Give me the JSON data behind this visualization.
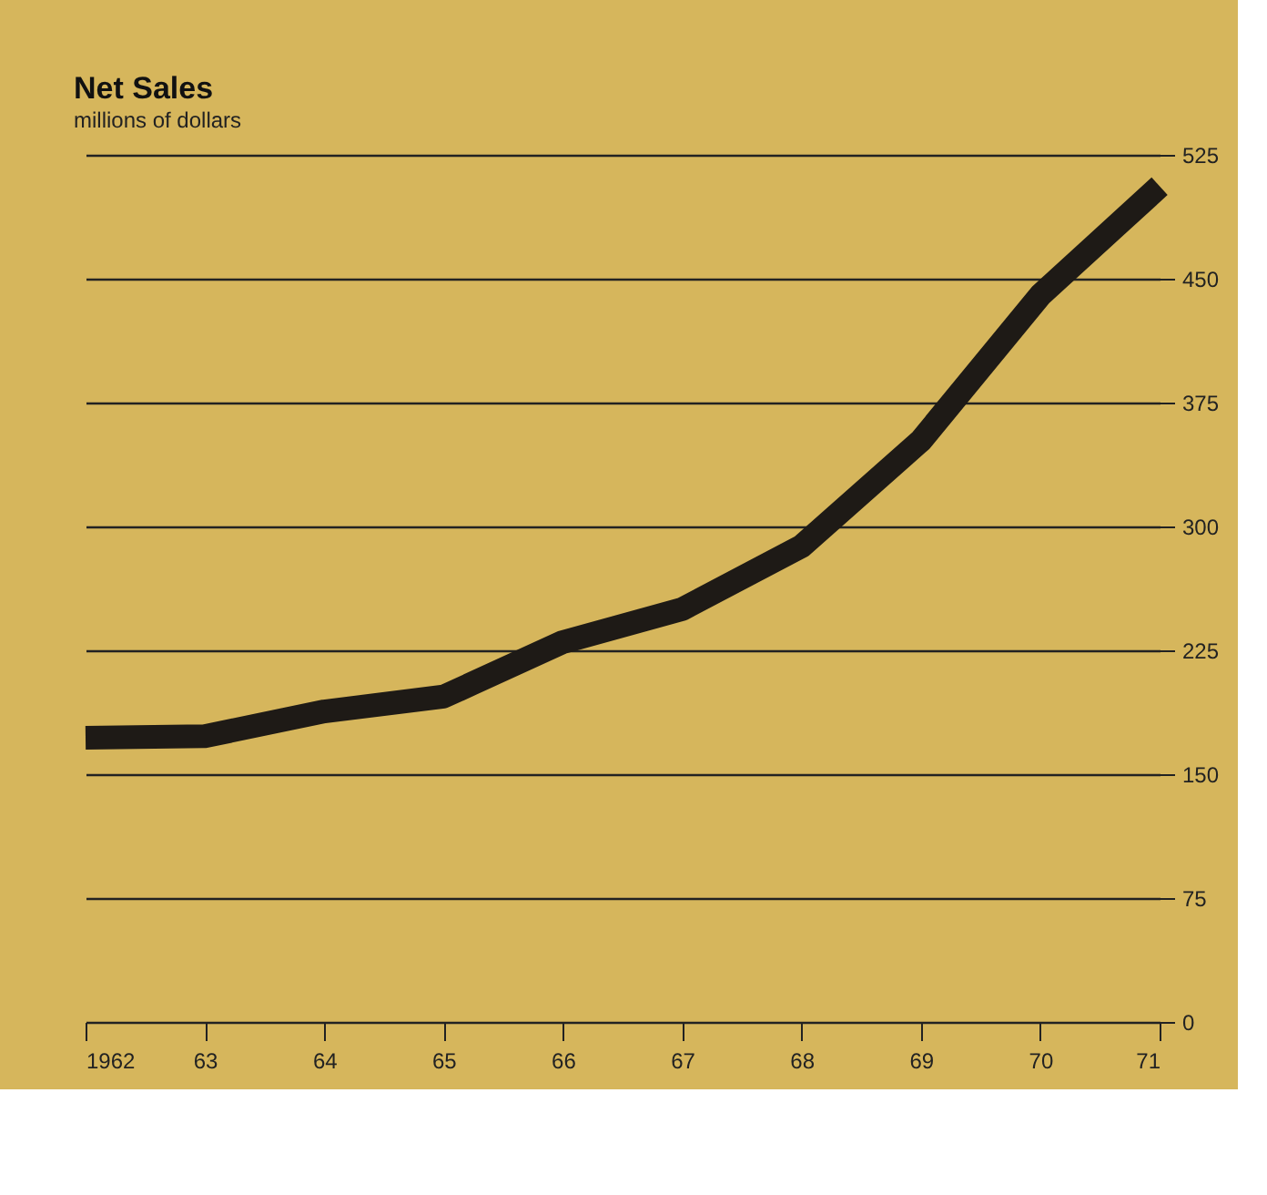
{
  "chart_data": {
    "type": "line",
    "title": "Net Sales",
    "subtitle": "millions of dollars",
    "x": [
      1962,
      1963,
      1964,
      1965,
      1966,
      1967,
      1968,
      1969,
      1970,
      1971
    ],
    "series": [
      {
        "color": "#1e1a16",
        "values": [
          172,
          173,
          188,
          197,
          230,
          250,
          288,
          352,
          440,
          506
        ]
      }
    ],
    "xlim": [
      1962,
      1971
    ],
    "xticks": [
      {
        "value": 1962,
        "label": "1962"
      },
      {
        "value": 1963,
        "label": "63"
      },
      {
        "value": 1964,
        "label": "64"
      },
      {
        "value": 1965,
        "label": "65"
      },
      {
        "value": 1966,
        "label": "66"
      },
      {
        "value": 1967,
        "label": "67"
      },
      {
        "value": 1968,
        "label": "68"
      },
      {
        "value": 1969,
        "label": "69"
      },
      {
        "value": 1970,
        "label": "70"
      },
      {
        "value": 1971,
        "label": "71"
      }
    ],
    "ylim": [
      0,
      525
    ],
    "yticks": [
      0,
      75,
      150,
      225,
      300,
      375,
      450,
      525
    ],
    "grid": "y",
    "marker": "none",
    "line_style": "solid"
  }
}
